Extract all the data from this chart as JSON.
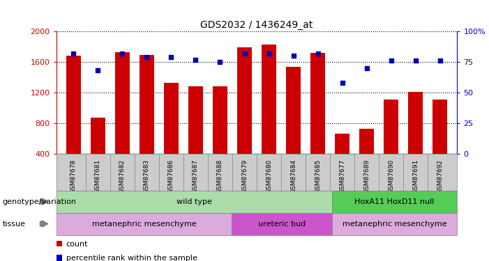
{
  "title": "GDS2032 / 1436249_at",
  "samples": [
    "GSM87678",
    "GSM87681",
    "GSM87682",
    "GSM87683",
    "GSM87686",
    "GSM87687",
    "GSM87688",
    "GSM87679",
    "GSM87680",
    "GSM87684",
    "GSM87685",
    "GSM87677",
    "GSM87689",
    "GSM87690",
    "GSM87691",
    "GSM87692"
  ],
  "counts": [
    1680,
    870,
    1730,
    1690,
    1330,
    1280,
    1280,
    1790,
    1830,
    1540,
    1720,
    670,
    730,
    1110,
    1210,
    1110
  ],
  "percentiles": [
    82,
    68,
    82,
    79,
    79,
    77,
    75,
    82,
    82,
    80,
    82,
    58,
    70,
    76,
    76,
    76
  ],
  "ylim_left": [
    400,
    2000
  ],
  "ylim_right": [
    0,
    100
  ],
  "yticks_left": [
    400,
    800,
    1200,
    1600,
    2000
  ],
  "yticks_right": [
    0,
    25,
    50,
    75,
    100
  ],
  "bar_color": "#cc0000",
  "dot_color": "#0000bb",
  "genotype_groups": [
    {
      "label": "wild type",
      "start": 0,
      "end": 10,
      "color": "#aaddaa"
    },
    {
      "label": "HoxA11 HoxD11 null",
      "start": 11,
      "end": 15,
      "color": "#55cc55"
    }
  ],
  "tissue_groups": [
    {
      "label": "metanephric mesenchyme",
      "start": 0,
      "end": 6,
      "color": "#ddaadd"
    },
    {
      "label": "ureteric bud",
      "start": 7,
      "end": 10,
      "color": "#cc55cc"
    },
    {
      "label": "metanephric mesenchyme",
      "start": 11,
      "end": 15,
      "color": "#ddaadd"
    }
  ],
  "genotype_label": "genotype/variation",
  "tissue_label": "tissue",
  "legend_count_label": "count",
  "legend_percentile_label": "percentile rank within the sample",
  "left_axis_color": "#cc0000",
  "right_axis_color": "#0000bb",
  "xtick_bg": "#cccccc",
  "fig_bg": "#ffffff"
}
